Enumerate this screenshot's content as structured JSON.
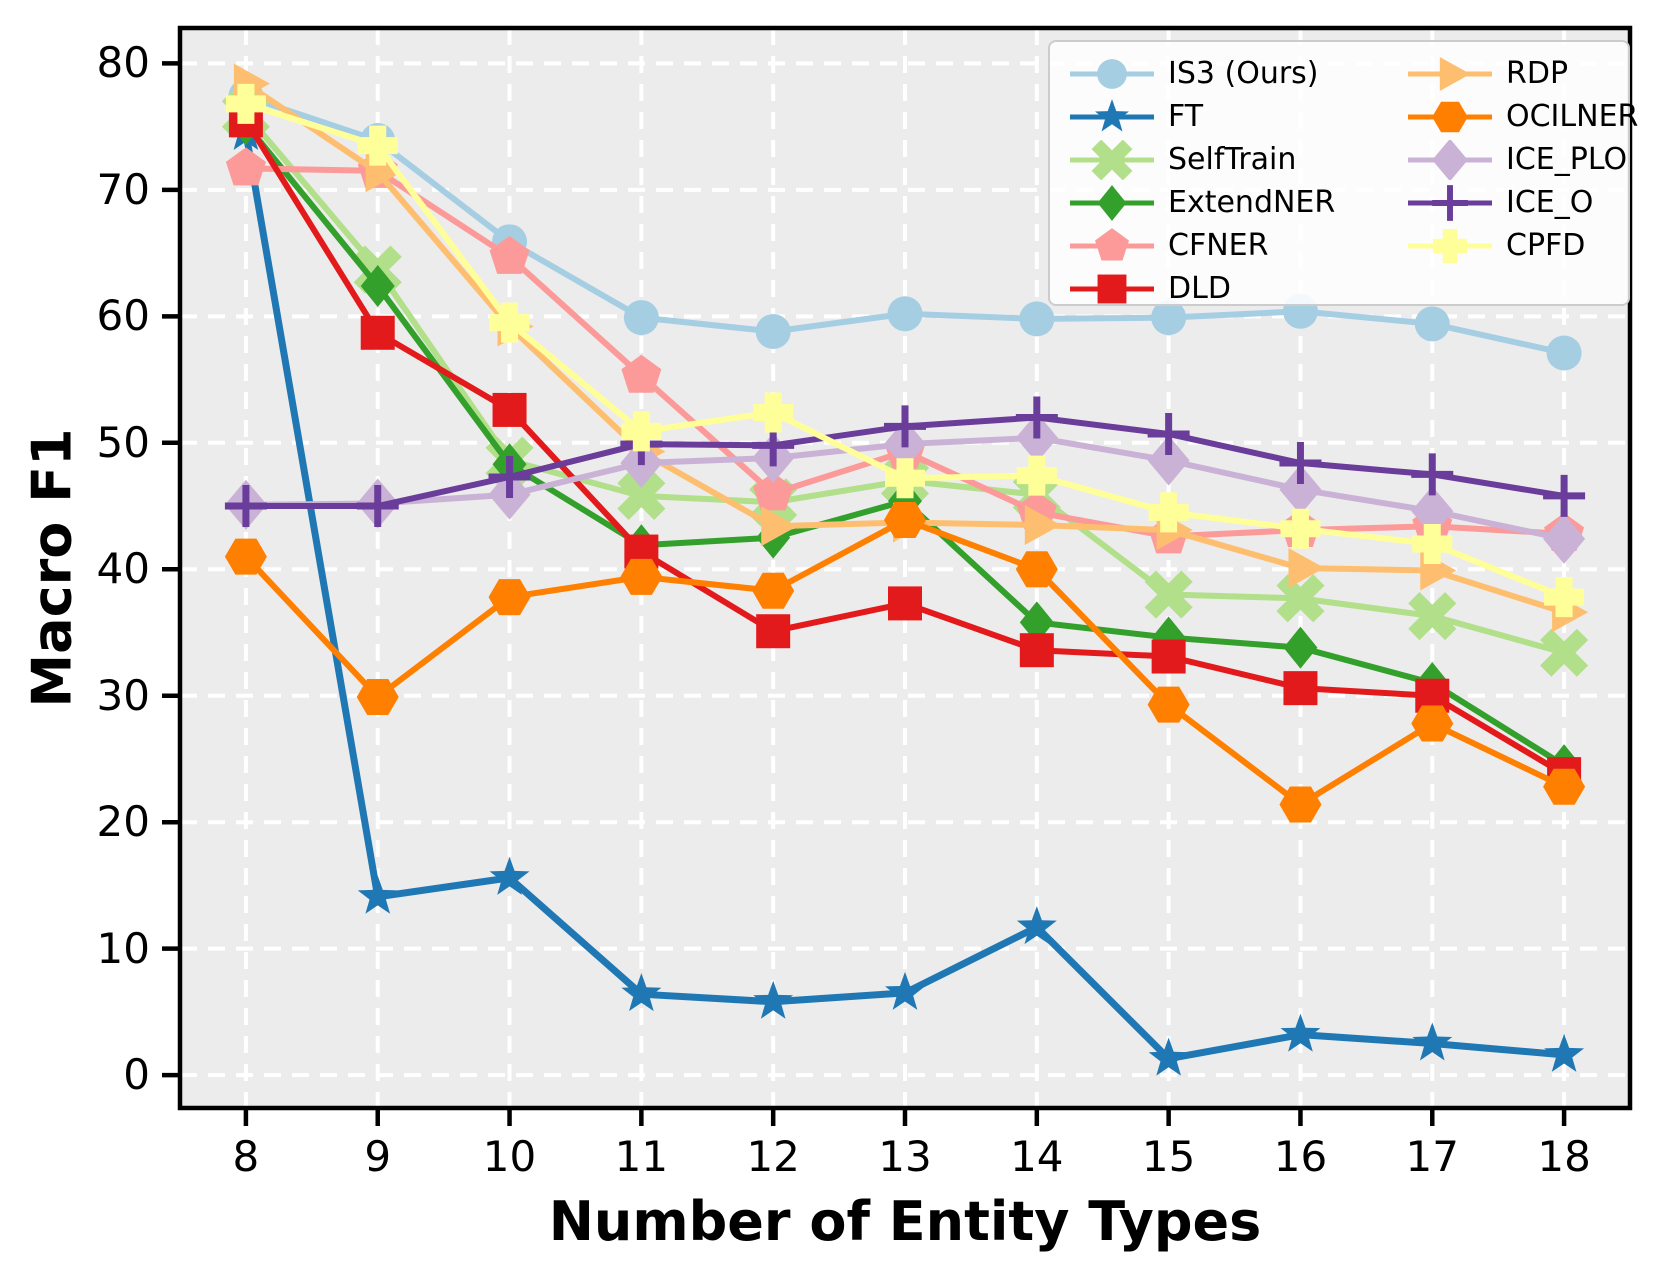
{
  "figure": {
    "background": "#ffffff",
    "plot_background": "#ececec",
    "grid_color": "#ffffff",
    "spine_color": "#000000"
  },
  "axes": {
    "xlabel": "Number of Entity Types",
    "ylabel": "Macro F1",
    "x_ticks": [
      8,
      9,
      10,
      11,
      12,
      13,
      14,
      15,
      16,
      17,
      18
    ],
    "y_ticks": [
      0,
      10,
      20,
      30,
      40,
      50,
      60,
      70,
      80
    ],
    "xlim": [
      7.5,
      18.5
    ],
    "ylim": [
      -2.6,
      82.8
    ],
    "grid": "dashed-white-both-axes"
  },
  "legend": {
    "position": "upper-right",
    "columns": 2,
    "column_split": 6
  },
  "chart_data": {
    "type": "line",
    "x": [
      8,
      9,
      10,
      11,
      12,
      13,
      14,
      15,
      16,
      17,
      18
    ],
    "xlabel": "Number of Entity Types",
    "ylabel": "Macro F1",
    "series": [
      {
        "name": "IS3 (Ours)",
        "color": "#a6cee3",
        "marker": "circle",
        "values": [
          77.4,
          73.9,
          65.9,
          59.9,
          58.8,
          60.2,
          59.8,
          59.9,
          60.4,
          59.4,
          57.1
        ]
      },
      {
        "name": "FT",
        "color": "#1f78b4",
        "marker": "star",
        "values": [
          74.5,
          14.1,
          15.6,
          6.4,
          5.8,
          6.5,
          11.7,
          1.3,
          3.2,
          2.5,
          1.6
        ]
      },
      {
        "name": "SelfTrain",
        "color": "#b2df8a",
        "marker": "x-thick",
        "values": [
          76.0,
          63.7,
          48.6,
          45.8,
          45.3,
          47.0,
          45.9,
          38.0,
          37.7,
          36.3,
          33.4
        ]
      },
      {
        "name": "ExtendNER",
        "color": "#33a02c",
        "marker": "diamond",
        "values": [
          75.2,
          62.4,
          48.3,
          41.9,
          42.5,
          45.4,
          35.8,
          34.6,
          33.8,
          31.0,
          24.5
        ]
      },
      {
        "name": "CFNER",
        "color": "#fb9a99",
        "marker": "pentagon",
        "values": [
          71.7,
          71.5,
          64.7,
          55.3,
          46.0,
          49.3,
          44.5,
          42.6,
          43.1,
          43.4,
          42.8
        ]
      },
      {
        "name": "DLD",
        "color": "#e31a1c",
        "marker": "square",
        "values": [
          75.5,
          58.7,
          52.6,
          41.4,
          35.1,
          37.3,
          33.6,
          33.1,
          30.6,
          30.0,
          23.8
        ]
      },
      {
        "name": "RDP",
        "color": "#fdbf6f",
        "marker": "triangle-right",
        "values": [
          78.4,
          71.4,
          59.2,
          49.3,
          43.4,
          43.7,
          43.5,
          43.1,
          40.1,
          39.9,
          36.6
        ]
      },
      {
        "name": "OCILNER",
        "color": "#ff7f00",
        "marker": "hexagon",
        "values": [
          41.0,
          29.9,
          37.8,
          39.4,
          38.3,
          43.9,
          40.0,
          29.3,
          21.4,
          27.8,
          22.8
        ]
      },
      {
        "name": "ICE_PLO",
        "color": "#cab2d6",
        "marker": "diamond-wide",
        "values": [
          45.1,
          45.2,
          45.9,
          48.4,
          48.8,
          49.9,
          50.4,
          48.6,
          46.3,
          44.6,
          42.4
        ]
      },
      {
        "name": "ICE_O",
        "color": "#6a3d9a",
        "marker": "plus-line",
        "values": [
          45.0,
          45.0,
          47.3,
          49.9,
          49.8,
          51.3,
          52.0,
          50.7,
          48.4,
          47.5,
          45.8
        ]
      },
      {
        "name": "CPFD",
        "color": "#ffff99",
        "marker": "plus-filled",
        "values": [
          76.8,
          73.5,
          59.5,
          50.9,
          52.4,
          47.2,
          47.4,
          44.5,
          43.2,
          42.0,
          37.8
        ]
      }
    ]
  }
}
